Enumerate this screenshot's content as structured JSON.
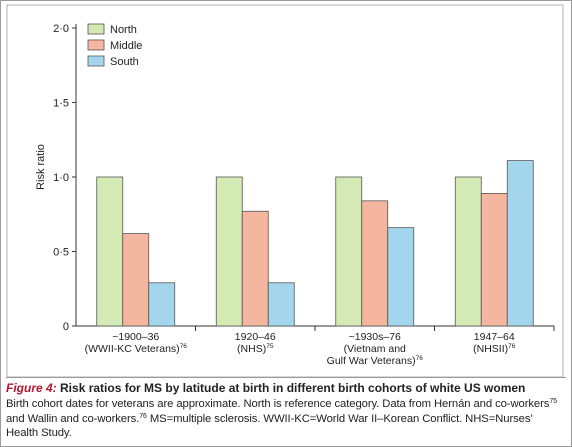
{
  "chart_data": {
    "type": "bar",
    "ylabel": "Risk ratio",
    "ylim": [
      0,
      2.0
    ],
    "yticks": [
      {
        "value": 0,
        "label": "0"
      },
      {
        "value": 0.5,
        "label": "0·5"
      },
      {
        "value": 1.0,
        "label": "1·0"
      },
      {
        "value": 1.5,
        "label": "1·5"
      },
      {
        "value": 2.0,
        "label": "2·0"
      }
    ],
    "categories": [
      {
        "lines": [
          "~1900–36",
          "(WWII-KC Veterans)"
        ],
        "refs": [
          "",
          "76"
        ]
      },
      {
        "lines": [
          "1920–46",
          "(NHS)"
        ],
        "refs": [
          "",
          "75"
        ]
      },
      {
        "lines": [
          "~1930s–76",
          "(Vietnam and",
          "Gulf War Veterans)"
        ],
        "refs": [
          "",
          "",
          "76"
        ]
      },
      {
        "lines": [
          "1947–64",
          "(NHSII)"
        ],
        "refs": [
          "",
          "76"
        ]
      }
    ],
    "series": [
      {
        "name": "North",
        "color": "#d4eab5",
        "values": [
          1.0,
          1.0,
          1.0,
          1.0
        ]
      },
      {
        "name": "Middle",
        "color": "#f5b6a0",
        "values": [
          0.62,
          0.77,
          0.84,
          0.89
        ]
      },
      {
        "name": "South",
        "color": "#a3d6ec",
        "values": [
          0.29,
          0.29,
          0.66,
          1.11
        ]
      }
    ],
    "legend_position": "top-left",
    "grid": false
  },
  "caption": {
    "figure_label": "Figure 4:",
    "title": "Risk ratios for MS by latitude at birth in different birth cohorts of white US women",
    "body": [
      {
        "t": "Birth cohort dates for veterans are approximate. North is reference category. Data from Hernán and co-workers"
      },
      {
        "t": "75",
        "sup": true
      },
      {
        "t": " and Wallin and co-workers."
      },
      {
        "t": "76",
        "sup": true
      },
      {
        "t": " MS=multiple sclerosis. WWII-KC=World War II–Korean Conflict. NHS=Nurses’ Health Study."
      }
    ]
  }
}
